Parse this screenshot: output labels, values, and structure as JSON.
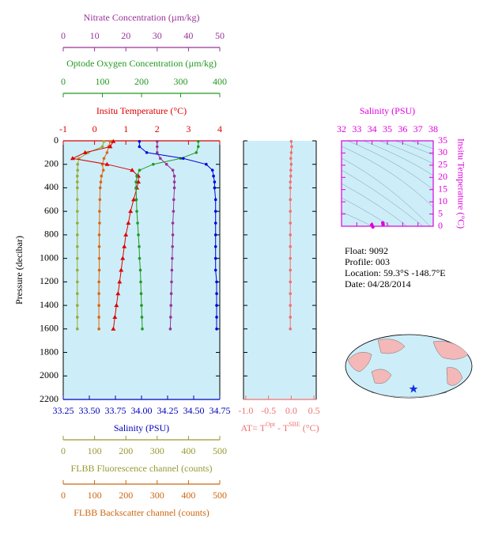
{
  "chart_data": [
    {
      "type": "profile",
      "y_label": "Pressure (decibar)",
      "ylim": [
        0,
        2200
      ],
      "yticks": [
        0,
        200,
        400,
        600,
        800,
        1000,
        1200,
        1400,
        1600,
        1800,
        2000,
        2200
      ],
      "pressure": [
        5,
        50,
        100,
        150,
        200,
        250,
        300,
        350,
        400,
        500,
        600,
        700,
        800,
        900,
        1000,
        1100,
        1200,
        1300,
        1400,
        1500,
        1600
      ],
      "background": "#cdeef8",
      "axes": [
        {
          "side": "top",
          "label": "Nitrate Concentration (µm/kg)",
          "color": "#993399",
          "lim": [
            0,
            50
          ],
          "ticks": [
            0,
            10,
            20,
            30,
            40,
            50
          ]
        },
        {
          "side": "top",
          "label": "Optode Oxygen Concentration (µm/kg)",
          "color": "#229922",
          "lim": [
            0,
            400
          ],
          "ticks": [
            0,
            100,
            200,
            300,
            400
          ]
        },
        {
          "side": "top",
          "label": "Insitu Temperature (°C)",
          "color": "#dd0000",
          "lim": [
            -1,
            4
          ],
          "ticks": [
            -1,
            0,
            1,
            2,
            3,
            4
          ]
        },
        {
          "side": "bottom",
          "label": "Salinity (PSU)",
          "color": "#0000bb",
          "lim": [
            33.25,
            34.75
          ],
          "ticks": [
            33.25,
            {
              "value": 33.5,
              "label": "33.50"
            },
            33.75,
            {
              "value": 34.0,
              "label": "34.00"
            },
            34.25,
            {
              "value": 34.5,
              "label": "34.50"
            },
            34.75
          ]
        },
        {
          "side": "bottom",
          "label": "FLBB Fluorescence channel (counts)",
          "color": "#999933",
          "lim": [
            0,
            500
          ],
          "ticks": [
            0,
            100,
            200,
            300,
            400,
            500
          ]
        },
        {
          "side": "bottom",
          "label": "FLBB Backscatter channel (counts)",
          "color": "#cc6611",
          "lim": [
            0,
            500
          ],
          "ticks": [
            0,
            100,
            200,
            300,
            400,
            500
          ]
        }
      ],
      "series": [
        {
          "axis": 4,
          "color": "#99aa33",
          "marker": "circle",
          "values": [
            130,
            125,
            80,
            50,
            46,
            46,
            45,
            45,
            45,
            45,
            45,
            45,
            45,
            45,
            45,
            45,
            45,
            45,
            45,
            45,
            45
          ]
        },
        {
          "axis": 5,
          "color": "#dd6611",
          "marker": "circle",
          "values": [
            150,
            145,
            140,
            130,
            125,
            128,
            122,
            120,
            118,
            117,
            116,
            116,
            115,
            115,
            115,
            115,
            114,
            114,
            114,
            114,
            114
          ]
        },
        {
          "axis": 2,
          "color": "#dd0000",
          "marker": "triangle",
          "values": [
            0.6,
            0.5,
            -0.3,
            -0.7,
            0.4,
            1.2,
            1.4,
            1.4,
            1.35,
            1.25,
            1.15,
            1.08,
            1.0,
            0.95,
            0.9,
            0.85,
            0.8,
            0.75,
            0.7,
            0.65,
            0.6
          ]
        },
        {
          "axis": 1,
          "color": "#229922",
          "marker": "circle",
          "values": [
            345,
            345,
            340,
            300,
            230,
            195,
            188,
            186,
            186,
            187,
            188,
            190,
            192,
            194,
            195,
            197,
            198,
            199,
            200,
            201,
            202
          ]
        },
        {
          "axis": 0,
          "color": "#993399",
          "marker": "circle",
          "values": [
            30,
            30,
            30,
            31,
            33,
            35,
            35.5,
            35.5,
            35.5,
            35.3,
            35.2,
            35,
            35,
            34.9,
            34.8,
            34.7,
            34.6,
            34.5,
            34.4,
            34.3,
            34.2
          ]
        },
        {
          "axis": 3,
          "color": "#0000dd",
          "marker": "circle",
          "values": [
            33.98,
            33.98,
            34.05,
            34.4,
            34.62,
            34.68,
            34.69,
            34.7,
            34.7,
            34.71,
            34.71,
            34.71,
            34.71,
            34.71,
            34.71,
            34.71,
            34.72,
            34.72,
            34.72,
            34.72,
            34.72
          ]
        }
      ]
    },
    {
      "type": "profile",
      "ylim": [
        0,
        2200
      ],
      "yticks": [
        0,
        200,
        400,
        600,
        800,
        1000,
        1200,
        1400,
        1600,
        1800,
        2000,
        2200
      ],
      "pressure": [
        5,
        50,
        100,
        150,
        200,
        250,
        300,
        350,
        400,
        500,
        600,
        700,
        800,
        900,
        1000,
        1100,
        1200,
        1300,
        1400,
        1500,
        1600
      ],
      "background": "#cdeef8",
      "axes": [
        {
          "side": "bottom",
          "label_parts": [
            "AT= T",
            "Opt",
            " - T",
            "SBE",
            " (°C)"
          ],
          "color": "#f07070",
          "lim": [
            -1.05,
            0.55
          ],
          "ticks": [
            {
              "value": -1.0,
              "label": "-1.0"
            },
            -0.5,
            {
              "value": 0.0,
              "label": "0.0"
            },
            0.5
          ]
        }
      ],
      "series": [
        {
          "axis": 0,
          "color": "#f07070",
          "marker": "circle",
          "values": [
            0.0,
            0.01,
            0.0,
            -0.01,
            0.0,
            -0.01,
            -0.01,
            -0.02,
            -0.02,
            -0.02,
            -0.02,
            -0.02,
            -0.02,
            -0.02,
            -0.02,
            -0.02,
            -0.02,
            -0.02,
            -0.02,
            -0.02,
            -0.02
          ]
        }
      ]
    },
    {
      "type": "scatter",
      "x_label": "Salinity (PSU)",
      "y_label": "Insitu Temperature (°C)",
      "color": "#dd00dd",
      "background": "#cdeef8",
      "xlim": [
        32,
        38
      ],
      "xticks": [
        32,
        33,
        34,
        35,
        36,
        37,
        38
      ],
      "ylim": [
        0,
        35
      ],
      "yticks": [
        0,
        5,
        10,
        15,
        20,
        25,
        30,
        35
      ],
      "x": [
        33.98,
        34.05,
        34.7,
        34.72
      ],
      "y": [
        0.6,
        -0.3,
        1.4,
        0.6
      ]
    }
  ],
  "info": [
    "Float:  9092",
    "Profile:  003",
    "Location:  59.3°S  -148.7°E",
    "Date:  04/28/2014"
  ]
}
